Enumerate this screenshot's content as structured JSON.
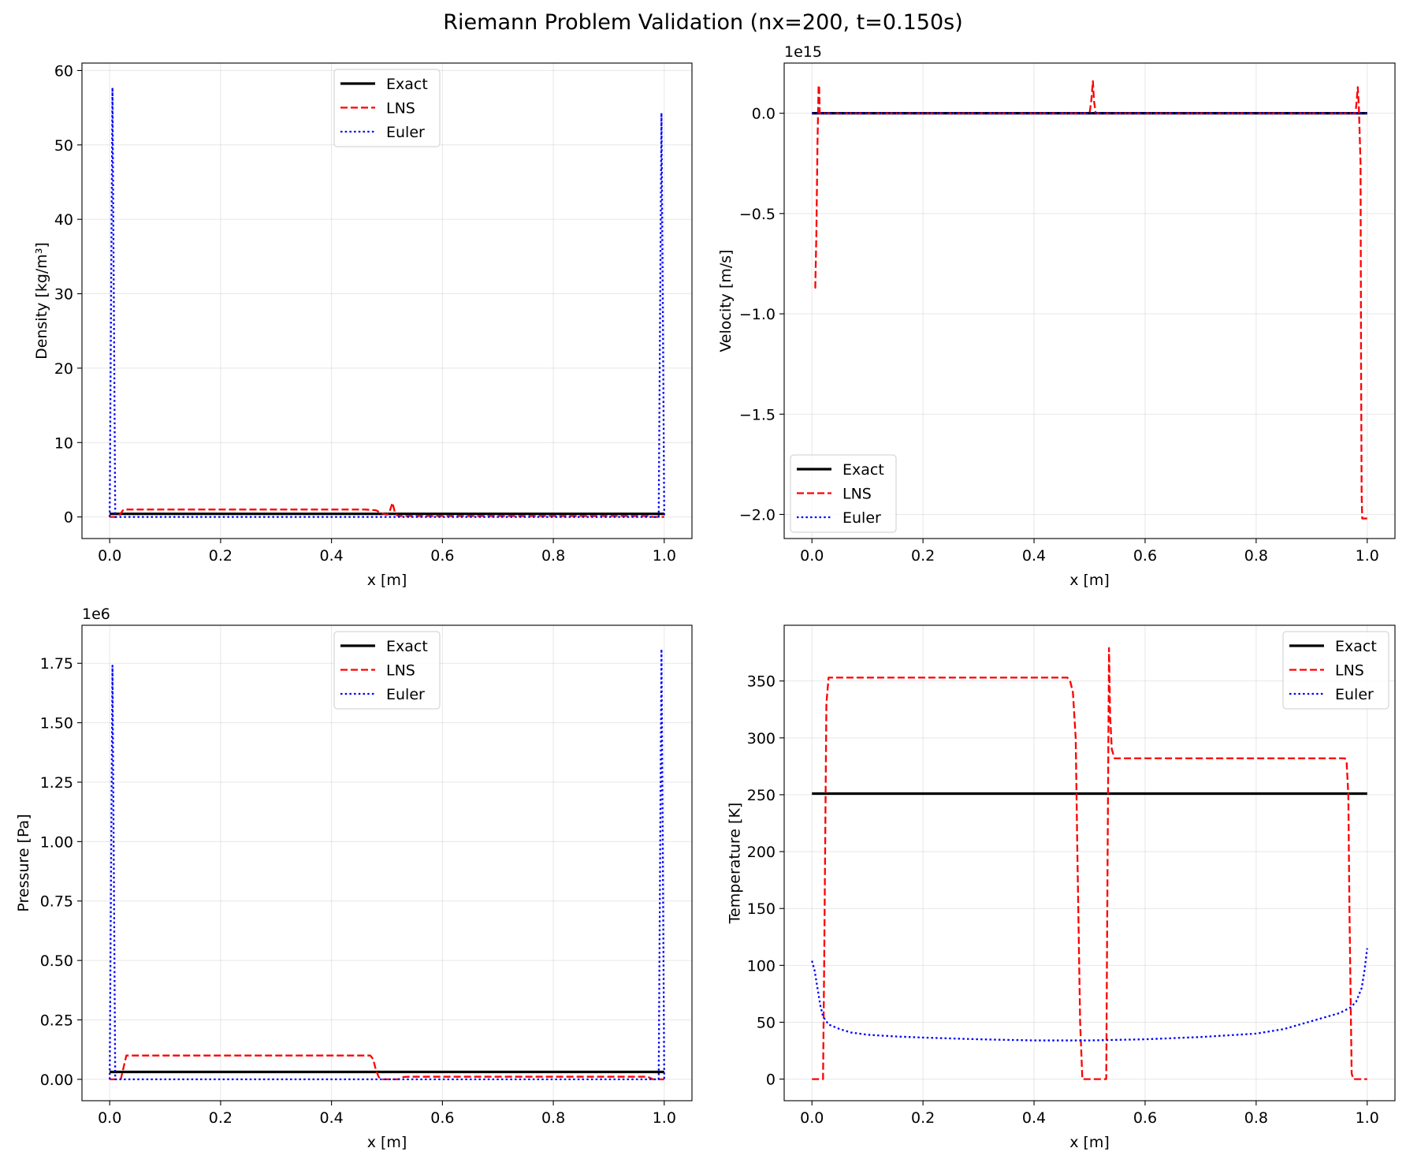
{
  "figure": {
    "title": "Riemann Problem Validation (nx=200, t=0.150s)"
  },
  "chart_data": [
    {
      "type": "line",
      "xlabel": "x [m]",
      "ylabel": "Density [kg/m³]",
      "offset_text": "",
      "xlim": [
        -0.05,
        1.05
      ],
      "ylim": [
        -2.9,
        61
      ],
      "xticks": [
        0.0,
        0.2,
        0.4,
        0.6,
        0.8,
        1.0
      ],
      "xtick_labels": [
        "0.0",
        "0.2",
        "0.4",
        "0.6",
        "0.8",
        "1.0"
      ],
      "yticks": [
        0,
        10,
        20,
        30,
        40,
        50,
        60
      ],
      "ytick_labels": [
        "0",
        "10",
        "20",
        "30",
        "40",
        "50",
        "60"
      ],
      "grid": true,
      "legend": "upper center",
      "series": [
        {
          "name": "Exact",
          "color": "#000000",
          "style": "solid",
          "x": [
            0.0,
            1.0
          ],
          "y": [
            0.42,
            0.42
          ]
        },
        {
          "name": "LNS",
          "color": "#ff0000",
          "style": "dashed",
          "x": [
            0.0,
            0.005,
            0.01,
            0.015,
            0.02,
            0.025,
            0.3,
            0.46,
            0.48,
            0.49,
            0.5,
            0.505,
            0.51,
            0.515,
            0.52,
            0.53,
            0.6,
            0.8,
            0.97,
            0.98,
            0.99,
            1.0
          ],
          "y": [
            0.0,
            0.0,
            0.0,
            0.0,
            0.5,
            1.0,
            1.0,
            1.0,
            0.9,
            0.5,
            0.3,
            0.8,
            1.9,
            0.4,
            0.15,
            0.13,
            0.13,
            0.13,
            0.13,
            0.0,
            0.0,
            0.0
          ]
        },
        {
          "name": "Euler",
          "color": "#0000ff",
          "style": "dotted",
          "x": [
            0.0,
            0.005,
            0.01,
            0.3,
            0.6,
            0.98,
            0.99,
            0.995,
            1.0
          ],
          "y": [
            0.0,
            57.7,
            0.0,
            0.0,
            0.0,
            0.0,
            0.0,
            54.3,
            0.0
          ]
        }
      ]
    },
    {
      "type": "line",
      "xlabel": "x [m]",
      "ylabel": "Velocity [m/s]",
      "offset_text": "1e15",
      "xlim": [
        -0.05,
        1.05
      ],
      "ylim": [
        -2.12,
        0.25
      ],
      "xticks": [
        0.0,
        0.2,
        0.4,
        0.6,
        0.8,
        1.0
      ],
      "xtick_labels": [
        "0.0",
        "0.2",
        "0.4",
        "0.6",
        "0.8",
        "1.0"
      ],
      "yticks": [
        -2.0,
        -1.5,
        -1.0,
        -0.5,
        0.0
      ],
      "ytick_labels": [
        "−2.0",
        "−1.5",
        "−1.0",
        "−0.5",
        "0.0"
      ],
      "grid": true,
      "legend": "lower left",
      "series": [
        {
          "name": "Exact",
          "color": "#000000",
          "style": "solid",
          "x": [
            0.0,
            1.0
          ],
          "y": [
            0.0,
            0.0
          ]
        },
        {
          "name": "LNS",
          "color": "#ff0000",
          "style": "dashed",
          "x": [
            0.005,
            0.006,
            0.008,
            0.01,
            0.012,
            0.013,
            0.014,
            0.016,
            0.02,
            0.3,
            0.5,
            0.503,
            0.506,
            0.508,
            0.511,
            0.52,
            0.8,
            0.979,
            0.981,
            0.983,
            0.985,
            0.988,
            0.989,
            0.99,
            0.991,
            1.0
          ],
          "y": [
            -0.87,
            -0.87,
            -0.6,
            -0.15,
            0.14,
            0.13,
            0.0,
            0.0,
            0.0,
            0.0,
            0.0,
            0.06,
            0.16,
            0.06,
            0.0,
            0.0,
            0.0,
            0.0,
            0.06,
            0.13,
            0.03,
            -0.25,
            -1.3,
            -1.9,
            -2.02,
            -2.02
          ]
        },
        {
          "name": "Euler",
          "color": "#0000ff",
          "style": "dotted",
          "x": [
            0.0,
            1.0
          ],
          "y": [
            0.0,
            0.0
          ]
        }
      ]
    },
    {
      "type": "line",
      "xlabel": "x [m]",
      "ylabel": "Pressure [Pa]",
      "offset_text": "1e6",
      "xlim": [
        -0.05,
        1.05
      ],
      "ylim": [
        -0.09,
        1.91
      ],
      "xticks": [
        0.0,
        0.2,
        0.4,
        0.6,
        0.8,
        1.0
      ],
      "xtick_labels": [
        "0.0",
        "0.2",
        "0.4",
        "0.6",
        "0.8",
        "1.0"
      ],
      "yticks": [
        0.0,
        0.25,
        0.5,
        0.75,
        1.0,
        1.25,
        1.5,
        1.75
      ],
      "ytick_labels": [
        "0.00",
        "0.25",
        "0.50",
        "0.75",
        "1.00",
        "1.25",
        "1.50",
        "1.75"
      ],
      "grid": true,
      "legend": "upper center",
      "series": [
        {
          "name": "Exact",
          "color": "#000000",
          "style": "solid",
          "x": [
            0.0,
            1.0
          ],
          "y": [
            0.031,
            0.031
          ]
        },
        {
          "name": "LNS",
          "color": "#ff0000",
          "style": "dashed",
          "x": [
            0.0,
            0.01,
            0.02,
            0.025,
            0.03,
            0.46,
            0.47,
            0.475,
            0.48,
            0.485,
            0.49,
            0.5,
            0.52,
            0.53,
            0.54,
            0.8,
            0.97,
            0.975,
            0.98,
            1.0
          ],
          "y": [
            0.0,
            0.0,
            0.0,
            0.05,
            0.1,
            0.1,
            0.1,
            0.085,
            0.04,
            0.01,
            0.0,
            0.0,
            0.0,
            0.01,
            0.011,
            0.011,
            0.011,
            0.005,
            0.0,
            0.0
          ]
        },
        {
          "name": "Euler",
          "color": "#0000ff",
          "style": "dotted",
          "x": [
            0.0,
            0.005,
            0.01,
            0.3,
            0.6,
            0.985,
            0.99,
            0.995,
            1.0
          ],
          "y": [
            0.0,
            1.74,
            0.0,
            0.0,
            0.0,
            0.0,
            0.0,
            1.81,
            0.0
          ]
        }
      ]
    },
    {
      "type": "line",
      "xlabel": "x [m]",
      "ylabel": "Temperature [K]",
      "offset_text": "",
      "xlim": [
        -0.05,
        1.05
      ],
      "ylim": [
        -19,
        399
      ],
      "xticks": [
        0.0,
        0.2,
        0.4,
        0.6,
        0.8,
        1.0
      ],
      "xtick_labels": [
        "0.0",
        "0.2",
        "0.4",
        "0.6",
        "0.8",
        "1.0"
      ],
      "yticks": [
        0,
        50,
        100,
        150,
        200,
        250,
        300,
        350
      ],
      "ytick_labels": [
        "0",
        "50",
        "100",
        "150",
        "200",
        "250",
        "300",
        "350"
      ],
      "grid": true,
      "legend": "upper right",
      "series": [
        {
          "name": "Exact",
          "color": "#000000",
          "style": "solid",
          "x": [
            0.0,
            1.0
          ],
          "y": [
            251,
            251
          ]
        },
        {
          "name": "LNS",
          "color": "#ff0000",
          "style": "dashed",
          "x": [
            0.0,
            0.02,
            0.022,
            0.026,
            0.03,
            0.3,
            0.46,
            0.465,
            0.47,
            0.475,
            0.478,
            0.483,
            0.487,
            0.49,
            0.53,
            0.532,
            0.535,
            0.537,
            0.54,
            0.545,
            0.6,
            0.8,
            0.96,
            0.963,
            0.966,
            0.968,
            0.972,
            0.975,
            1.0
          ],
          "y": [
            0.0,
            0.0,
            100,
            330,
            353,
            353,
            353,
            350,
            340,
            300,
            200,
            50,
            0.0,
            0.0,
            0.0,
            160,
            379,
            320,
            290,
            282,
            282,
            282,
            282,
            278,
            250,
            150,
            5,
            0.0,
            0.0
          ]
        },
        {
          "name": "Euler",
          "color": "#0000ff",
          "style": "dotted",
          "x": [
            0.0,
            0.005,
            0.01,
            0.015,
            0.02,
            0.03,
            0.05,
            0.07,
            0.1,
            0.15,
            0.2,
            0.3,
            0.4,
            0.5,
            0.6,
            0.7,
            0.8,
            0.85,
            0.9,
            0.95,
            0.97,
            0.98,
            0.99,
            0.995,
            1.0
          ],
          "y": [
            104,
            95,
            80,
            65,
            55,
            48,
            44,
            41,
            39,
            37.5,
            36.5,
            35,
            34,
            34,
            35,
            37,
            40,
            44,
            51,
            58,
            63,
            68,
            80,
            95,
            115
          ]
        }
      ]
    }
  ]
}
